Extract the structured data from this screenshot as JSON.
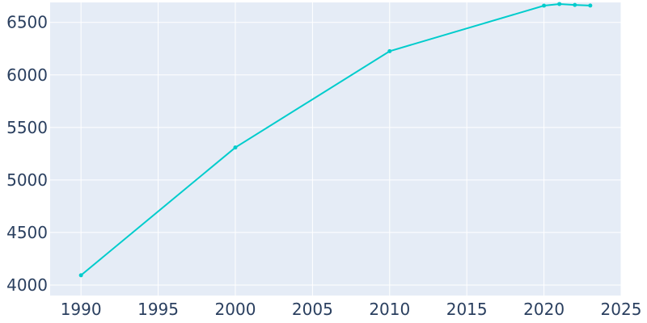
{
  "chart_data": {
    "type": "line",
    "title": "",
    "xlabel": "",
    "ylabel": "",
    "x": [
      1990,
      2000,
      2010,
      2020,
      2021,
      2022,
      2023
    ],
    "series": [
      {
        "values": [
          4093,
          5309,
          6226,
          6659,
          6675,
          6666,
          6660
        ]
      }
    ],
    "xlim": [
      1988,
      2025
    ],
    "ylim": [
      3900,
      6690
    ],
    "xticks": [
      1990,
      1995,
      2000,
      2005,
      2010,
      2015,
      2020,
      2025
    ],
    "yticks": [
      4000,
      4500,
      5000,
      5500,
      6000,
      6500
    ],
    "grid": true,
    "legend": "none",
    "colors": {
      "plot_background": "#e5ecf6",
      "grid": "#ffffff",
      "line": "#00cccc",
      "tick_text": "#2a3f5f"
    }
  }
}
